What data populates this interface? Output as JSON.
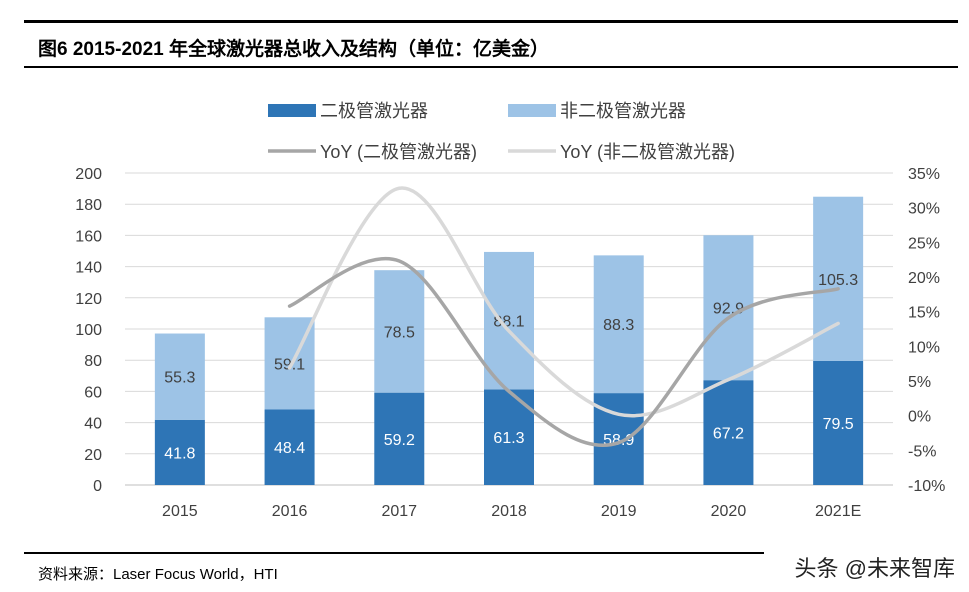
{
  "title": "图6  2015-2021 年全球激光器总收入及结构（单位：亿美金）",
  "source": "资料来源：Laser Focus World，HTI",
  "watermark": "头条 @未来智库",
  "chart_data": {
    "type": "bar",
    "stacked": true,
    "categories": [
      "2015",
      "2016",
      "2017",
      "2018",
      "2019",
      "2020",
      "2021E"
    ],
    "series": [
      {
        "name": "二极管激光器",
        "type": "bar",
        "color": "#2E75B6",
        "values": [
          41.8,
          48.4,
          59.2,
          61.3,
          58.9,
          67.2,
          79.5
        ]
      },
      {
        "name": "非二极管激光器",
        "type": "bar",
        "color": "#9DC3E6",
        "values": [
          55.3,
          59.1,
          78.5,
          88.1,
          88.3,
          92.9,
          105.3
        ]
      },
      {
        "name": "YoY (二极管激光器)",
        "type": "line",
        "axis": "right",
        "color": "#A6A6A6",
        "values": [
          null,
          15.8,
          22.3,
          3.5,
          -3.9,
          14.1,
          18.3
        ]
      },
      {
        "name": "YoY (非二极管激光器)",
        "type": "line",
        "axis": "right",
        "color": "#D9D9D9",
        "values": [
          null,
          6.9,
          32.8,
          12.2,
          0.2,
          5.2,
          13.3
        ]
      }
    ],
    "ylim": [
      0,
      200
    ],
    "yticks": [
      "0",
      "20",
      "40",
      "60",
      "80",
      "100",
      "120",
      "140",
      "160",
      "180",
      "200"
    ],
    "y2lim": [
      -10,
      35
    ],
    "y2ticks": [
      "-10%",
      "-5%",
      "0%",
      "5%",
      "10%",
      "15%",
      "20%",
      "25%",
      "30%",
      "35%"
    ],
    "grid": true,
    "legend": "top"
  }
}
